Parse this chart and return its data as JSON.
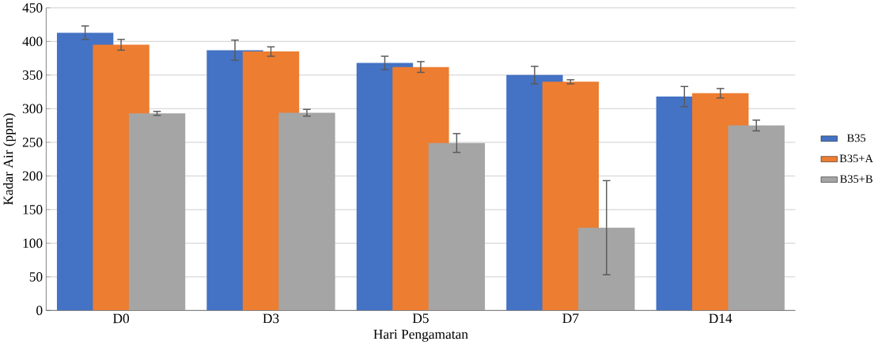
{
  "chart_data": {
    "type": "bar",
    "xlabel": "Hari Pengamatan",
    "ylabel": "Kadar Air (ppm)",
    "categories": [
      "D0",
      "D3",
      "D5",
      "D7",
      "D14"
    ],
    "series": [
      {
        "name": "B35",
        "color": "#4472c4",
        "values": [
          413,
          387,
          368,
          350,
          318
        ],
        "errors": [
          10,
          15,
          10,
          13,
          15
        ]
      },
      {
        "name": "B35+A",
        "color": "#ed7d31",
        "values": [
          395,
          385,
          362,
          340,
          323
        ],
        "errors": [
          8,
          7,
          8,
          3,
          7
        ]
      },
      {
        "name": "B35+B",
        "color": "#a5a5a5",
        "values": [
          293,
          294,
          249,
          123,
          275
        ],
        "errors": [
          3,
          5,
          14,
          70,
          8
        ]
      }
    ],
    "ylim": [
      0,
      450
    ],
    "yticks": [
      0,
      50,
      100,
      150,
      200,
      250,
      300,
      350,
      400,
      450
    ],
    "grid": "y",
    "legend": "right"
  }
}
